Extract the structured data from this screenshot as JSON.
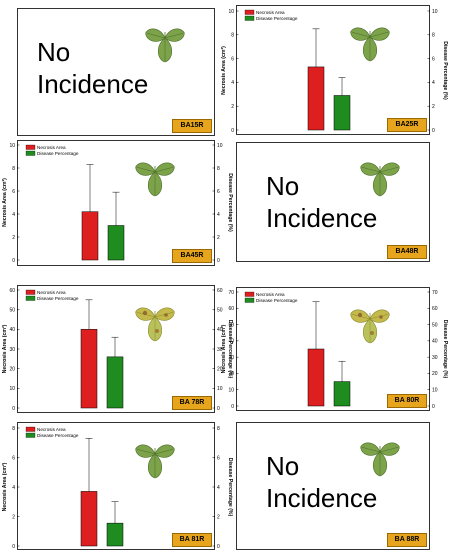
{
  "colors": {
    "necrosis": "#dd1f1f",
    "disease": "#1e8c1e",
    "badge": "#e6a51c",
    "leaf": "#7ca24a",
    "leaf_chlorotic": "#c4ba4c"
  },
  "no_incidence_text": "No Incidence",
  "legend": {
    "necrosis": "Necrosis Area",
    "disease": "Disease Percentage"
  },
  "axes": {
    "left_label": "Necrosis Area (cm²)",
    "right_label": "Disease Percentage (%)"
  },
  "chart_data": [
    {
      "id": "BA15R",
      "label": "BA15R",
      "no_incidence": true
    },
    {
      "id": "BA25R",
      "label": "BA25R",
      "no_incidence": false,
      "type": "bar",
      "ylim": [
        0,
        10
      ],
      "ticks": [
        0,
        2,
        4,
        6,
        8,
        10
      ],
      "right_ylim": [
        0,
        10
      ],
      "right_ticks": [
        0,
        2,
        4,
        6,
        8,
        10
      ],
      "necrosis": {
        "value": 5.3,
        "error": 3.2
      },
      "disease": {
        "value": 2.9,
        "error": 1.5
      }
    },
    {
      "id": "BA45R",
      "label": "BA45R",
      "no_incidence": false,
      "type": "bar",
      "ylim": [
        0,
        10
      ],
      "ticks": [
        0,
        2,
        4,
        6,
        8,
        10
      ],
      "right_ylim": [
        0,
        10
      ],
      "right_ticks": [
        0,
        2,
        4,
        6,
        8,
        10
      ],
      "necrosis": {
        "value": 4.2,
        "error": 4.1
      },
      "disease": {
        "value": 3.0,
        "error": 2.9
      }
    },
    {
      "id": "BA48R",
      "label": "BA48R",
      "no_incidence": true
    },
    {
      "id": "BA78R",
      "label": "BA 78R",
      "no_incidence": false,
      "type": "bar",
      "leaf": "chlorotic",
      "ylim": [
        0,
        60
      ],
      "ticks": [
        0,
        10,
        20,
        30,
        40,
        50,
        60
      ],
      "right_ylim": [
        0,
        60
      ],
      "right_ticks": [
        0,
        10,
        20,
        30,
        40,
        50,
        60
      ],
      "necrosis": {
        "value": 40,
        "error": 15
      },
      "disease": {
        "value": 26,
        "error": 10
      }
    },
    {
      "id": "BA80R",
      "label": "BA 80R",
      "no_incidence": false,
      "type": "bar",
      "leaf": "chlorotic",
      "ylim": [
        0,
        70
      ],
      "ticks": [
        0,
        10,
        20,
        30,
        40,
        50,
        60,
        70
      ],
      "right_ylim": [
        0,
        70
      ],
      "right_ticks": [
        0,
        10,
        20,
        30,
        40,
        50,
        60,
        70
      ],
      "necrosis": {
        "value": 35,
        "error": 29
      },
      "disease": {
        "value": 15,
        "error": 12.5
      }
    },
    {
      "id": "BA81R",
      "label": "BA 81R",
      "no_incidence": false,
      "type": "bar",
      "ylim": [
        0,
        8
      ],
      "ticks": [
        0,
        2,
        4,
        6,
        8
      ],
      "right_ylim": [
        0,
        8
      ],
      "right_ticks": [
        0,
        2,
        4,
        6,
        8
      ],
      "necrosis": {
        "value": 3.7,
        "error": 3.6
      },
      "disease": {
        "value": 1.55,
        "error": 1.45
      }
    },
    {
      "id": "BA88R",
      "label": "BA 88R",
      "no_incidence": true
    }
  ]
}
